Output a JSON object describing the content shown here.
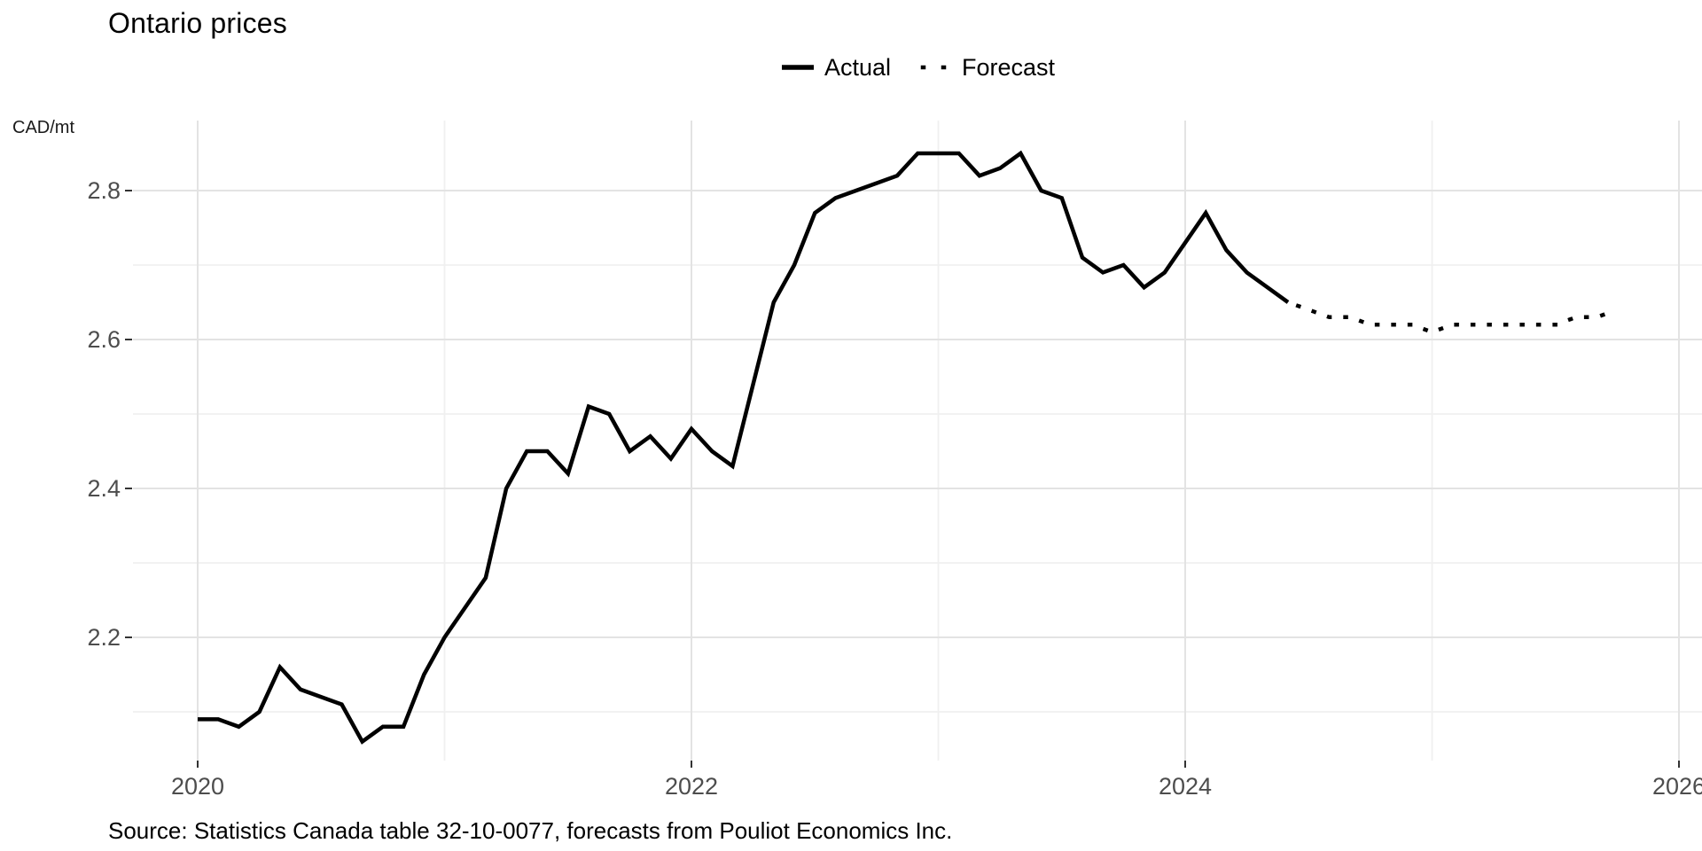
{
  "chart_data": {
    "type": "line",
    "title": "Ontario prices",
    "unit_label": "CAD/mt",
    "caption": "Source: Statistics Canada table 32-10-0077, forecasts from Pouliot Economics Inc.",
    "legend": {
      "position": "top-center",
      "items": [
        {
          "label": "Actual",
          "linetype": "solid"
        },
        {
          "label": "Forecast",
          "linetype": "dotted"
        }
      ]
    },
    "x_axis": {
      "label": "",
      "tick_labels": [
        "2020",
        "2022",
        "2024",
        "2026"
      ],
      "major_ticks": [
        2020,
        2022,
        2024,
        2026
      ],
      "minor_gridlines": [
        2021,
        2023,
        2025
      ],
      "units": "year, monthly data"
    },
    "y_axis": {
      "label": "CAD/mt",
      "tick_labels": [
        "2.2",
        "2.4",
        "2.6",
        "2.8"
      ],
      "major_ticks": [
        2.2,
        2.4,
        2.6,
        2.8
      ],
      "minor_gridlines": [
        2.1,
        2.3,
        2.5,
        2.7
      ],
      "range": [
        2.03,
        2.89
      ],
      "grid": true
    },
    "series": [
      {
        "name": "Actual",
        "linetype": "solid",
        "start_month": "2020-01",
        "values": [
          2.09,
          2.09,
          2.08,
          2.1,
          2.16,
          2.13,
          2.12,
          2.11,
          2.06,
          2.08,
          2.08,
          2.15,
          2.2,
          2.24,
          2.28,
          2.4,
          2.45,
          2.45,
          2.42,
          2.51,
          2.5,
          2.45,
          2.47,
          2.44,
          2.48,
          2.45,
          2.43,
          2.54,
          2.65,
          2.7,
          2.77,
          2.79,
          2.8,
          2.81,
          2.82,
          2.85,
          2.85,
          2.85,
          2.82,
          2.83,
          2.85,
          2.8,
          2.79,
          2.71,
          2.69,
          2.7,
          2.67,
          2.69,
          2.73,
          2.77,
          2.72,
          2.69,
          2.67,
          2.65
        ]
      },
      {
        "name": "Forecast",
        "linetype": "dotted",
        "start_month": "2024-06",
        "values": [
          2.65,
          2.64,
          2.63,
          2.63,
          2.62,
          2.62,
          2.62,
          2.61,
          2.62,
          2.62,
          2.62,
          2.62,
          2.62,
          2.62,
          2.63,
          2.63,
          2.64
        ]
      }
    ],
    "colors": {
      "line": "#000000",
      "grid_major": "#e3e3e3",
      "grid_minor": "#f0f0f0",
      "axis_text": "#4d4d4d",
      "tick_mark": "#333333",
      "background": "#ffffff"
    }
  }
}
